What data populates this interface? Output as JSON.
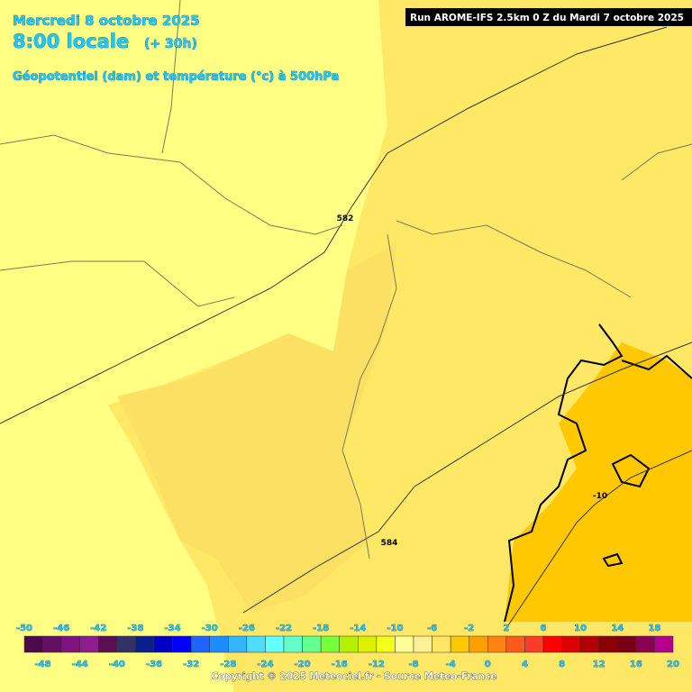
{
  "header": {
    "date": "Mercredi 8 octobre 2025",
    "time": "8:00 locale",
    "lead": "(+ 30h)",
    "parameter": "Géopotentiel (dam) et température (°c) à 500hPa"
  },
  "run_label": "Run AROME-IFS 2.5km 0 Z du Mardi 7 octobre 2025",
  "contour_labels": [
    582,
    584,
    -10
  ],
  "legend": {
    "colors": [
      "#4b0a4b",
      "#640f64",
      "#7d147d",
      "#8c1e8c",
      "#5a0f50",
      "#323264",
      "#0a1e8c",
      "#0000c8",
      "#0000ff",
      "#1e64ff",
      "#1e8cff",
      "#32b4ff",
      "#50dcff",
      "#64ffff",
      "#64ffc8",
      "#64ff8c",
      "#78ff3c",
      "#b4f000",
      "#dcf000",
      "#f5ff1e",
      "#ffff96",
      "#fff096",
      "#ffe664",
      "#ffc800",
      "#ffa000",
      "#ff8214",
      "#ff5a1e",
      "#ff3c28",
      "#ff0000",
      "#dc0000",
      "#b40000",
      "#8c0000",
      "#780014",
      "#8c0050",
      "#b4008c"
    ],
    "top_labels": [
      -50,
      -46,
      -42,
      -38,
      -34,
      -30,
      -26,
      -22,
      -18,
      -14,
      -10,
      -6,
      -2,
      2,
      6,
      10,
      14,
      18
    ],
    "bottom_labels": [
      -48,
      -44,
      -40,
      -36,
      -32,
      -28,
      -24,
      -20,
      -16,
      -12,
      -8,
      -4,
      0,
      4,
      8,
      12,
      16,
      20
    ]
  },
  "copyright": "Copyright © 2025 Meteociel.fr - Source Meteo-France"
}
